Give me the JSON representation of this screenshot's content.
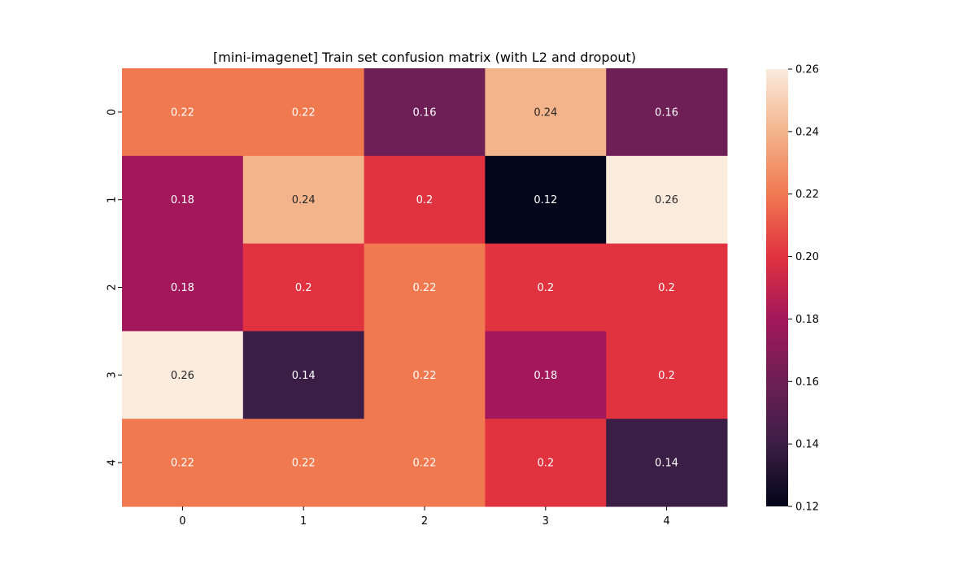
{
  "chart_data": {
    "type": "heatmap",
    "title": "[mini-imagenet] Train set confusion matrix (with L2 and dropout)",
    "xlabel": "",
    "ylabel": "",
    "x_categories": [
      "0",
      "1",
      "2",
      "3",
      "4"
    ],
    "y_categories": [
      "0",
      "1",
      "2",
      "3",
      "4"
    ],
    "values": [
      [
        0.22,
        0.22,
        0.16,
        0.24,
        0.16
      ],
      [
        0.18,
        0.24,
        0.2,
        0.12,
        0.26
      ],
      [
        0.18,
        0.2,
        0.22,
        0.2,
        0.2
      ],
      [
        0.26,
        0.14,
        0.22,
        0.18,
        0.2
      ],
      [
        0.22,
        0.22,
        0.22,
        0.2,
        0.14
      ]
    ],
    "value_labels": [
      [
        "0.22",
        "0.22",
        "0.16",
        "0.24",
        "0.16"
      ],
      [
        "0.18",
        "0.24",
        "0.2",
        "0.12",
        "0.26"
      ],
      [
        "0.18",
        "0.2",
        "0.22",
        "0.2",
        "0.2"
      ],
      [
        "0.26",
        "0.14",
        "0.22",
        "0.18",
        "0.2"
      ],
      [
        "0.22",
        "0.22",
        "0.22",
        "0.2",
        "0.14"
      ]
    ],
    "colorbar": {
      "range": [
        0.12,
        0.26
      ],
      "ticks": [
        "0.26",
        "0.24",
        "0.22",
        "0.20",
        "0.18",
        "0.16",
        "0.14",
        "0.12"
      ],
      "colormap": "rocket"
    }
  }
}
